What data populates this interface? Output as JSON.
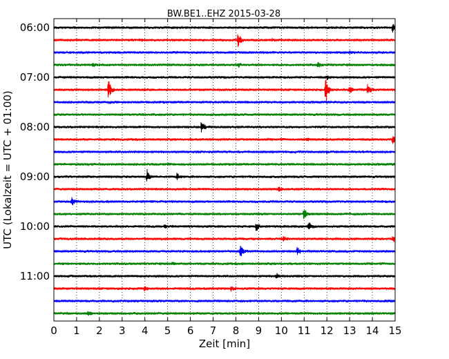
{
  "chart_data": {
    "type": "line",
    "title": "BW.BE1..EHZ 2015-03-28",
    "xlabel": "Zeit  [min]",
    "ylabel": "UTC (Lokalzeit = UTC + 01:00)",
    "xlim": [
      0,
      15
    ],
    "x_ticks": [
      "0",
      "1",
      "2",
      "3",
      "4",
      "5",
      "6",
      "7",
      "8",
      "9",
      "10",
      "11",
      "12",
      "13",
      "14",
      "15"
    ],
    "y_ticks": [
      {
        "label": "06:00",
        "trace": 0
      },
      {
        "label": "07:00",
        "trace": 4
      },
      {
        "label": "08:00",
        "trace": 8
      },
      {
        "label": "09:00",
        "trace": 12
      },
      {
        "label": "10:00",
        "trace": 16
      },
      {
        "label": "11:00",
        "trace": 20
      }
    ],
    "grid": "vertical-dotted",
    "trace_colors": [
      "#000000",
      "#ff0000",
      "#0000ff",
      "#008000"
    ],
    "traces": [
      {
        "start": "06:00",
        "events": [
          {
            "t": 14.9,
            "a": 8
          }
        ]
      },
      {
        "start": "06:15",
        "events": [
          {
            "t": 8.1,
            "a": 14
          },
          {
            "t": 3.8,
            "a": 2
          },
          {
            "t": 9.6,
            "a": 2
          }
        ]
      },
      {
        "start": "06:30",
        "events": [
          {
            "t": 13.0,
            "a": 2
          }
        ]
      },
      {
        "start": "06:45",
        "events": [
          {
            "t": 1.7,
            "a": 3
          },
          {
            "t": 8.1,
            "a": 4
          },
          {
            "t": 11.6,
            "a": 4
          }
        ]
      },
      {
        "start": "07:00",
        "events": [
          {
            "t": 12.0,
            "a": 5
          }
        ]
      },
      {
        "start": "07:15",
        "events": [
          {
            "t": 2.4,
            "a": 19
          },
          {
            "t": 11.95,
            "a": 24
          },
          {
            "t": 13.0,
            "a": 6
          },
          {
            "t": 13.8,
            "a": 11
          }
        ]
      },
      {
        "start": "07:30",
        "events": [
          {
            "t": 2.4,
            "a": 2
          }
        ]
      },
      {
        "start": "07:45",
        "events": [
          {
            "t": 3.9,
            "a": 2
          }
        ]
      },
      {
        "start": "08:00",
        "events": [
          {
            "t": 6.5,
            "a": 13
          }
        ]
      },
      {
        "start": "08:15",
        "events": [
          {
            "t": 11.1,
            "a": 3
          },
          {
            "t": 14.9,
            "a": 11
          }
        ]
      },
      {
        "start": "08:30",
        "events": [
          {
            "t": 12.0,
            "a": 2
          }
        ]
      },
      {
        "start": "08:45",
        "events": [
          {
            "t": 5.0,
            "a": 2
          }
        ]
      },
      {
        "start": "09:00",
        "events": [
          {
            "t": 4.1,
            "a": 12
          },
          {
            "t": 5.4,
            "a": 6
          }
        ]
      },
      {
        "start": "09:15",
        "events": [
          {
            "t": 9.9,
            "a": 5
          }
        ]
      },
      {
        "start": "09:30",
        "events": [
          {
            "t": 0.8,
            "a": 8
          }
        ]
      },
      {
        "start": "09:45",
        "events": [
          {
            "t": 11.0,
            "a": 11
          }
        ]
      },
      {
        "start": "10:00",
        "events": [
          {
            "t": 4.9,
            "a": 3
          },
          {
            "t": 8.9,
            "a": 9
          },
          {
            "t": 11.2,
            "a": 9
          }
        ]
      },
      {
        "start": "10:15",
        "events": [
          {
            "t": 10.1,
            "a": 5
          },
          {
            "t": 14.9,
            "a": 6
          }
        ]
      },
      {
        "start": "10:30",
        "events": [
          {
            "t": 8.2,
            "a": 13
          },
          {
            "t": 10.7,
            "a": 7
          }
        ]
      },
      {
        "start": "10:45",
        "events": [
          {
            "t": 5.2,
            "a": 2
          }
        ]
      },
      {
        "start": "11:00",
        "events": [
          {
            "t": 9.8,
            "a": 6
          }
        ]
      },
      {
        "start": "11:15",
        "events": [
          {
            "t": 4.0,
            "a": 5
          },
          {
            "t": 7.8,
            "a": 5
          }
        ]
      },
      {
        "start": "11:30",
        "events": [
          {
            "t": 14.6,
            "a": 2
          }
        ]
      },
      {
        "start": "11:45",
        "events": [
          {
            "t": 1.5,
            "a": 3
          }
        ]
      }
    ]
  }
}
